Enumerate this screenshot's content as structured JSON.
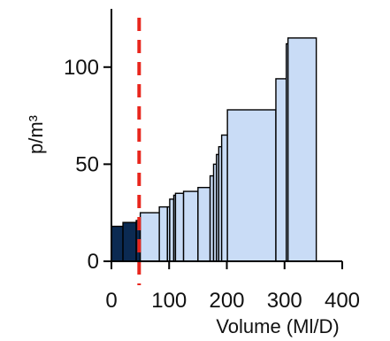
{
  "chart_data": {
    "type": "bar",
    "subtype": "variable-width step bars (cost curve)",
    "title": "",
    "xlabel": "Volume (Ml/D)",
    "ylabel": "p/m³",
    "xlim": [
      0,
      400
    ],
    "ylim": [
      0,
      130
    ],
    "x_ticks": [
      0,
      100,
      200,
      300,
      400
    ],
    "y_ticks": [
      0,
      50,
      100
    ],
    "grid": false,
    "legend": "none",
    "threshold_x": 48,
    "colors": {
      "existing": "#0b2a52",
      "option": "#c9dcf6",
      "threshold": "#e8261d",
      "axis": "#000000"
    },
    "bars": [
      {
        "x0": 0,
        "x1": 20,
        "value": 18,
        "group": "existing"
      },
      {
        "x0": 20,
        "x1": 43,
        "value": 20,
        "group": "existing"
      },
      {
        "x0": 43,
        "x1": 50,
        "value": 21,
        "group": "existing"
      },
      {
        "x0": 50,
        "x1": 83,
        "value": 25,
        "group": "option"
      },
      {
        "x0": 83,
        "x1": 97,
        "value": 28,
        "group": "option"
      },
      {
        "x0": 97,
        "x1": 101,
        "value": 28,
        "group": "option"
      },
      {
        "x0": 101,
        "x1": 108,
        "value": 32,
        "group": "option"
      },
      {
        "x0": 108,
        "x1": 111,
        "value": 34,
        "group": "option"
      },
      {
        "x0": 111,
        "x1": 125,
        "value": 35,
        "group": "option"
      },
      {
        "x0": 125,
        "x1": 150,
        "value": 36,
        "group": "option"
      },
      {
        "x0": 150,
        "x1": 171,
        "value": 38,
        "group": "option"
      },
      {
        "x0": 171,
        "x1": 177,
        "value": 44,
        "group": "option"
      },
      {
        "x0": 177,
        "x1": 182,
        "value": 50,
        "group": "option"
      },
      {
        "x0": 182,
        "x1": 186,
        "value": 55,
        "group": "option"
      },
      {
        "x0": 186,
        "x1": 191,
        "value": 59,
        "group": "option"
      },
      {
        "x0": 191,
        "x1": 201,
        "value": 65,
        "group": "option"
      },
      {
        "x0": 201,
        "x1": 285,
        "value": 78,
        "group": "option"
      },
      {
        "x0": 285,
        "x1": 303,
        "value": 94,
        "group": "option"
      },
      {
        "x0": 303,
        "x1": 306,
        "value": 112,
        "group": "option"
      },
      {
        "x0": 306,
        "x1": 355,
        "value": 115,
        "group": "option"
      }
    ]
  }
}
